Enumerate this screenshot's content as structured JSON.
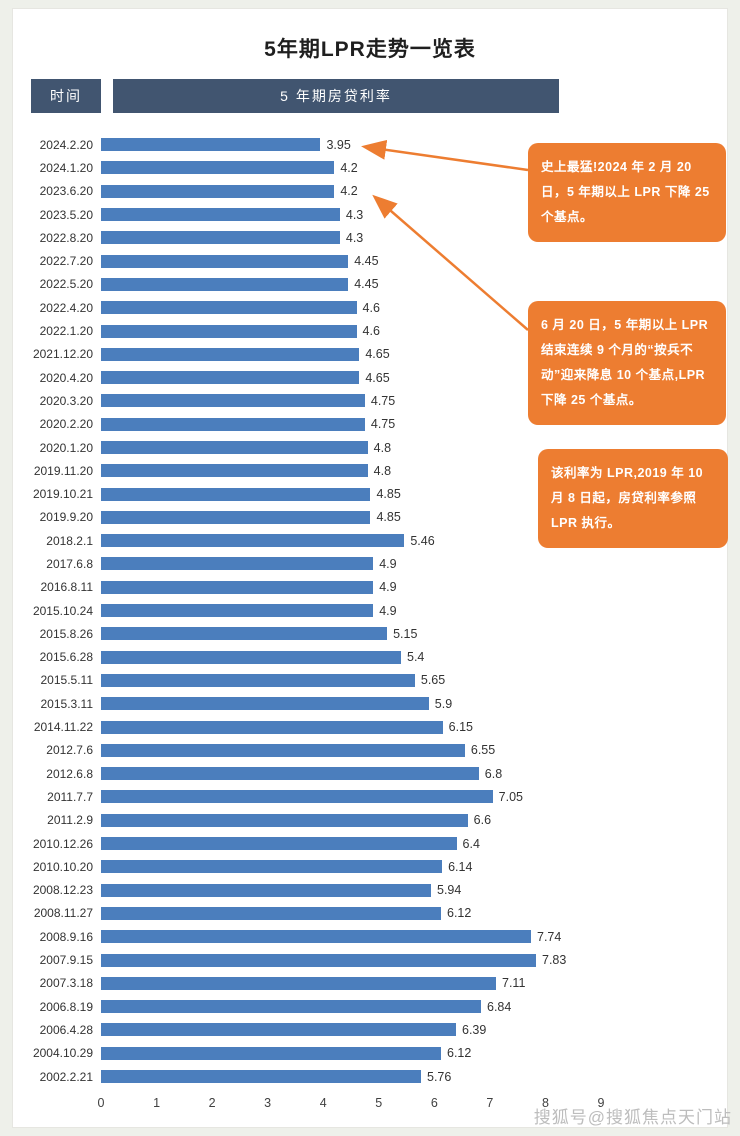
{
  "page": {
    "title": "5年期LPR走势一览表",
    "watermark": "搜狐号@搜狐焦点天门站"
  },
  "table_header": {
    "time_label": "时间",
    "rate_label": "5 年期房贷利率"
  },
  "chart_data": {
    "type": "bar",
    "orientation": "horizontal",
    "title": "5年期LPR走势一览表",
    "xlabel": "",
    "ylabel": "时间",
    "xlim": [
      0,
      9
    ],
    "x_ticks": [
      0,
      1,
      2,
      3,
      4,
      5,
      6,
      7,
      8,
      9
    ],
    "grid": false,
    "legend": false,
    "categories": [
      "2024.2.20",
      "2024.1.20",
      "2023.6.20",
      "2023.5.20",
      "2022.8.20",
      "2022.7.20",
      "2022.5.20",
      "2022.4.20",
      "2022.1.20",
      "2021.12.20",
      "2020.4.20",
      "2020.3.20",
      "2020.2.20",
      "2020.1.20",
      "2019.11.20",
      "2019.10.21",
      "2019.9.20",
      "2018.2.1",
      "2017.6.8",
      "2016.8.11",
      "2015.10.24",
      "2015.8.26",
      "2015.6.28",
      "2015.5.11",
      "2015.3.11",
      "2014.11.22",
      "2012.7.6",
      "2012.6.8",
      "2011.7.7",
      "2011.2.9",
      "2010.12.26",
      "2010.10.20",
      "2008.12.23",
      "2008.11.27",
      "2008.9.16",
      "2007.9.15",
      "2007.3.18",
      "2006.8.19",
      "2006.4.28",
      "2004.10.29",
      "2002.2.21"
    ],
    "values": [
      3.95,
      4.2,
      4.2,
      4.3,
      4.3,
      4.45,
      4.45,
      4.6,
      4.6,
      4.65,
      4.65,
      4.75,
      4.75,
      4.8,
      4.8,
      4.85,
      4.85,
      5.46,
      4.9,
      4.9,
      4.9,
      5.15,
      5.4,
      5.65,
      5.9,
      6.15,
      6.55,
      6.8,
      7.05,
      6.6,
      6.4,
      6.14,
      5.94,
      6.12,
      7.74,
      7.83,
      7.11,
      6.84,
      6.39,
      6.12,
      5.76
    ]
  },
  "annotations": [
    {
      "text": "史上最猛!2024 年 2 月 20 日，5 年期以上 LPR 下降 25 个基点。"
    },
    {
      "text": "6 月 20 日，5 年期以上 LPR 结束连续 9 个月的“按兵不动”迎来降息 10 个基点,LPR 下降 25 个基点。"
    },
    {
      "text": "该利率为 LPR,2019 年 10 月 8 日起，房贷利率参照 LPR 执行。"
    }
  ],
  "colors": {
    "bar": "#4b7ebd",
    "header": "#415570",
    "callout": "#ed7d31",
    "background": "#ffffff"
  }
}
